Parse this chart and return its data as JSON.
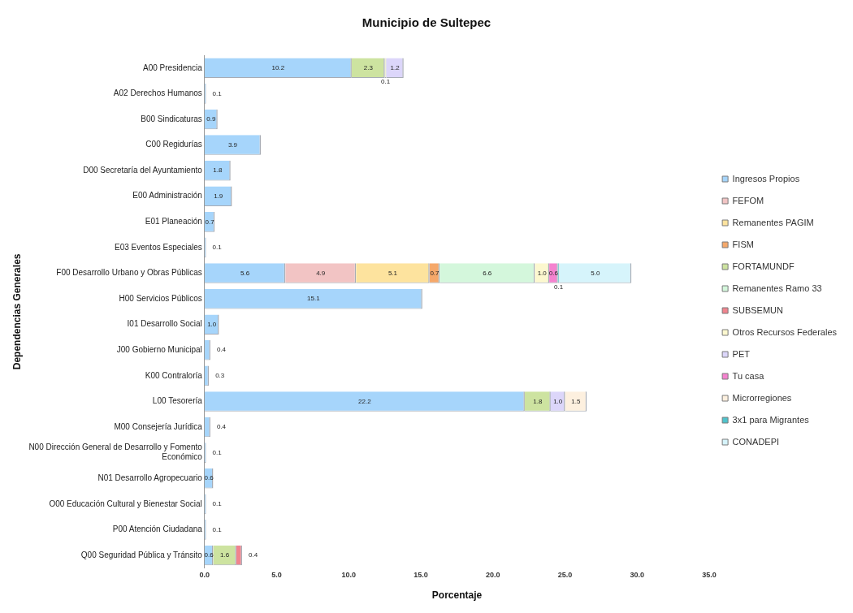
{
  "chart_data": {
    "type": "bar",
    "orientation": "horizontal",
    "stacked": true,
    "title": "Municipio de Sultepec",
    "xlabel": "Porcentaje",
    "ylabel": "Dependencias Generales",
    "legend": "right",
    "grid": false,
    "categories": [
      "A00 Presidencia",
      "A02 Derechos Humanos",
      "B00 Sindicaturas",
      "C00 Regidurías",
      "D00 Secretaría del Ayuntamiento",
      "E00 Administración",
      "E01 Planeación",
      "E03 Eventos Especiales",
      "F00 Desarrollo Urbano y Obras Públicas",
      "H00 Servicios Públicos",
      "I01 Desarrollo Social",
      "J00 Gobierno Municipal",
      "K00 Contraloría",
      "L00 Tesorería",
      "M00 Consejería Jurídica",
      "N00 Dirección General de Desarrollo y Fomento Económico",
      "N01 Desarrollo Agropecuario",
      "O00 Educación Cultural y Bienestar Social",
      "P00 Atención Ciudadana",
      "Q00 Seguridad Pública y Tránsito"
    ],
    "xlim": [
      0,
      35
    ],
    "xticks": [
      {
        "value": 0,
        "label": "0.0"
      },
      {
        "value": 5,
        "label": "5.0"
      },
      {
        "value": 10,
        "label": "10.0"
      },
      {
        "value": 15,
        "label": "15.0"
      },
      {
        "value": 20,
        "label": "20.0"
      },
      {
        "value": 25,
        "label": "25.0"
      },
      {
        "value": 30,
        "label": "30.0"
      },
      {
        "value": 35,
        "label": "35.0"
      }
    ],
    "series": [
      {
        "name": "Ingresos Propios",
        "color": "#a6d5fb",
        "values": [
          10.2,
          0.1,
          0.9,
          3.9,
          1.8,
          1.9,
          0.7,
          0.1,
          5.6,
          15.1,
          1.0,
          0.4,
          0.3,
          22.2,
          0.4,
          0.1,
          0.6,
          0.1,
          0.1,
          0.6
        ],
        "value_labels": [
          "10.2",
          "0.1",
          "0.9",
          "3.9",
          "1.8",
          "1.9",
          "0.7",
          "0.1",
          "5.6",
          "15.1",
          "1.0",
          "0.4",
          "0.3",
          "22.2",
          "0.4",
          "0.1",
          "0.6",
          "0.1",
          "0.1",
          "0.6"
        ]
      },
      {
        "name": "FEFOM",
        "color": "#f2c4c4",
        "values": [
          null,
          null,
          null,
          null,
          null,
          null,
          null,
          null,
          4.9,
          null,
          null,
          null,
          null,
          null,
          null,
          null,
          null,
          null,
          null,
          null
        ],
        "value_labels": [
          null,
          null,
          null,
          null,
          null,
          null,
          null,
          null,
          "4.9",
          null,
          null,
          null,
          null,
          null,
          null,
          null,
          null,
          null,
          null,
          null
        ]
      },
      {
        "name": "Remanentes PAGIM",
        "color": "#fde39e",
        "values": [
          null,
          null,
          null,
          null,
          null,
          null,
          null,
          null,
          5.1,
          null,
          null,
          null,
          null,
          null,
          null,
          null,
          null,
          null,
          null,
          null
        ],
        "value_labels": [
          null,
          null,
          null,
          null,
          null,
          null,
          null,
          null,
          "5.1",
          null,
          null,
          null,
          null,
          null,
          null,
          null,
          null,
          null,
          null,
          null
        ]
      },
      {
        "name": "FISM",
        "color": "#f5a86a",
        "values": [
          null,
          null,
          null,
          null,
          null,
          null,
          null,
          null,
          0.7,
          null,
          null,
          null,
          null,
          null,
          null,
          null,
          null,
          null,
          null,
          null
        ],
        "value_labels": [
          null,
          null,
          null,
          null,
          null,
          null,
          null,
          null,
          "0.7",
          null,
          null,
          null,
          null,
          null,
          null,
          null,
          null,
          null,
          null,
          null
        ]
      },
      {
        "name": "FORTAMUNDF",
        "color": "#cde3a0",
        "values": [
          2.3,
          null,
          null,
          null,
          null,
          null,
          null,
          null,
          null,
          null,
          null,
          null,
          null,
          1.8,
          null,
          null,
          null,
          null,
          null,
          1.6
        ],
        "value_labels": [
          "2.3",
          null,
          null,
          null,
          null,
          null,
          null,
          null,
          null,
          null,
          null,
          null,
          null,
          "1.8",
          null,
          null,
          null,
          null,
          null,
          "1.6"
        ]
      },
      {
        "name": "Remanentes Ramo 33",
        "color": "#d4f7dc",
        "values": [
          null,
          null,
          null,
          null,
          null,
          null,
          null,
          null,
          6.6,
          null,
          null,
          null,
          null,
          null,
          null,
          null,
          null,
          null,
          null,
          null
        ],
        "value_labels": [
          null,
          null,
          null,
          null,
          null,
          null,
          null,
          null,
          "6.6",
          null,
          null,
          null,
          null,
          null,
          null,
          null,
          null,
          null,
          null,
          null
        ]
      },
      {
        "name": "SUBSEMUN",
        "color": "#f0848e",
        "values": [
          null,
          null,
          null,
          null,
          null,
          null,
          null,
          null,
          null,
          null,
          null,
          null,
          null,
          null,
          null,
          null,
          null,
          null,
          null,
          0.4
        ],
        "value_labels": [
          null,
          null,
          null,
          null,
          null,
          null,
          null,
          null,
          null,
          null,
          null,
          null,
          null,
          null,
          null,
          null,
          null,
          null,
          null,
          "0.4"
        ]
      },
      {
        "name": "Otros Recursos Federales",
        "color": "#fcf8cf",
        "values": [
          0.1,
          null,
          null,
          null,
          null,
          null,
          null,
          null,
          1.0,
          null,
          null,
          null,
          null,
          null,
          null,
          null,
          null,
          null,
          null,
          null
        ],
        "value_labels": [
          "0.1",
          null,
          null,
          null,
          null,
          null,
          null,
          null,
          "1.0",
          null,
          null,
          null,
          null,
          null,
          null,
          null,
          null,
          null,
          null,
          null
        ]
      },
      {
        "name": "PET",
        "color": "#dcd6fa",
        "values": [
          1.2,
          null,
          null,
          null,
          null,
          null,
          null,
          null,
          null,
          null,
          null,
          null,
          null,
          1.0,
          null,
          null,
          null,
          null,
          null,
          null
        ],
        "value_labels": [
          "1.2",
          null,
          null,
          null,
          null,
          null,
          null,
          null,
          null,
          null,
          null,
          null,
          null,
          "1.0",
          null,
          null,
          null,
          null,
          null,
          null
        ]
      },
      {
        "name": "Tu casa",
        "color": "#f582cf",
        "values": [
          null,
          null,
          null,
          null,
          null,
          null,
          null,
          null,
          0.6,
          null,
          null,
          null,
          null,
          null,
          null,
          null,
          null,
          null,
          null,
          null
        ],
        "value_labels": [
          null,
          null,
          null,
          null,
          null,
          null,
          null,
          null,
          "0.6",
          null,
          null,
          null,
          null,
          null,
          null,
          null,
          null,
          null,
          null,
          null
        ]
      },
      {
        "name": "Microrregiones",
        "color": "#fdf0df",
        "values": [
          null,
          null,
          null,
          null,
          null,
          null,
          null,
          null,
          null,
          null,
          null,
          null,
          null,
          1.5,
          null,
          null,
          null,
          null,
          null,
          null
        ],
        "value_labels": [
          null,
          null,
          null,
          null,
          null,
          null,
          null,
          null,
          null,
          null,
          null,
          null,
          null,
          "1.5",
          null,
          null,
          null,
          null,
          null,
          null
        ]
      },
      {
        "name": "3x1 para Migrantes",
        "color": "#4fc3cc",
        "values": [
          null,
          null,
          null,
          null,
          null,
          null,
          null,
          null,
          0.1,
          null,
          null,
          null,
          null,
          null,
          null,
          null,
          null,
          null,
          null,
          null
        ],
        "value_labels": [
          null,
          null,
          null,
          null,
          null,
          null,
          null,
          null,
          "0.1",
          null,
          null,
          null,
          null,
          null,
          null,
          null,
          null,
          null,
          null,
          null
        ]
      },
      {
        "name": "CONADEPI",
        "color": "#d6f4fb",
        "values": [
          null,
          null,
          null,
          null,
          null,
          null,
          null,
          null,
          5.0,
          null,
          null,
          null,
          null,
          null,
          null,
          null,
          null,
          null,
          null,
          null
        ],
        "value_labels": [
          null,
          null,
          null,
          null,
          null,
          null,
          null,
          null,
          "5.0",
          null,
          null,
          null,
          null,
          null,
          null,
          null,
          null,
          null,
          null,
          null
        ]
      }
    ]
  }
}
